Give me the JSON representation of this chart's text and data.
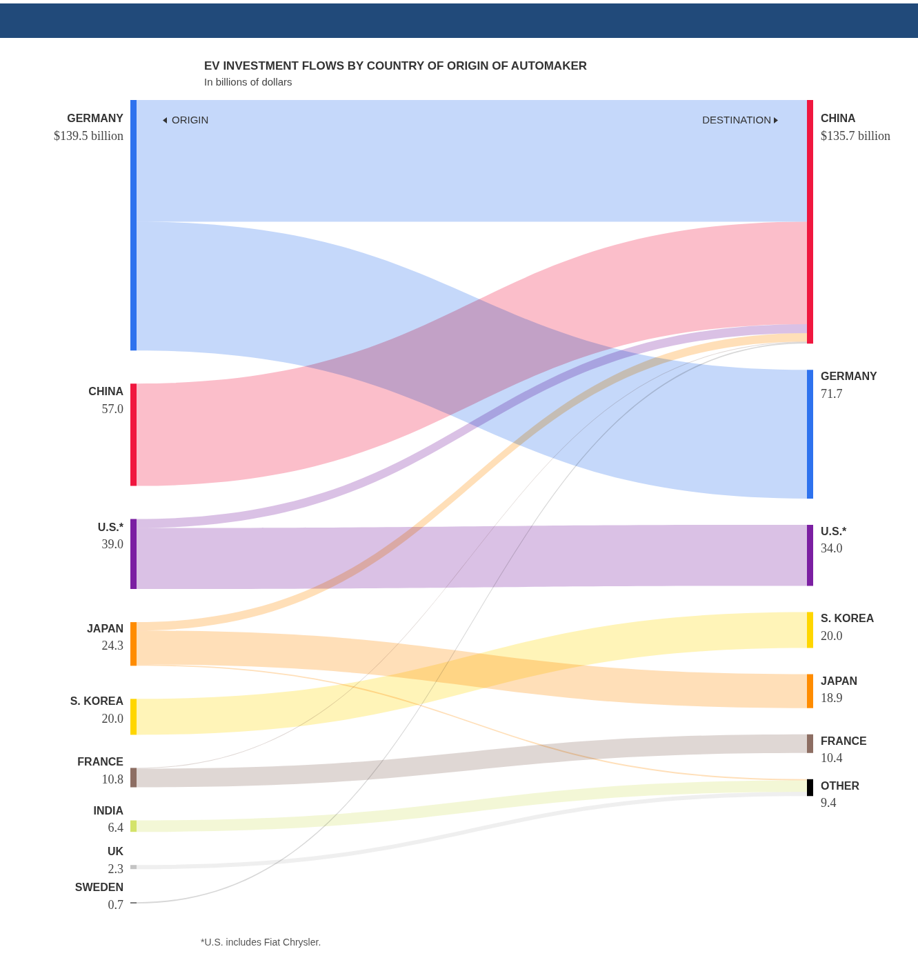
{
  "chart_data": {
    "type": "other",
    "title": "EV INVESTMENT FLOWS BY COUNTRY OF ORIGIN OF AUTOMAKER",
    "subtitle": "In billions of dollars",
    "categories": [
      "GERMANY",
      "CHINA",
      "U.S.*",
      "JAPAN",
      "S. KOREA",
      "FRANCE",
      "INDIA",
      "UK",
      "SWEDEN",
      "CHINA",
      "GERMANY",
      "U.S.*",
      "S. KOREA",
      "JAPAN",
      "FRANCE",
      "OTHER"
    ],
    "series": [
      {
        "name": "ORIGIN",
        "values": [
          139.5,
          57.0,
          39.0,
          24.3,
          20.0,
          10.8,
          6.4,
          2.3,
          0.7,
          null,
          null,
          null,
          null,
          null,
          null,
          null
        ],
        "value_labels": [
          "$139.5 billion",
          "57.0",
          "39.0",
          "24.3",
          "20.0",
          "10.8",
          "6.4",
          "2.3",
          "0.7",
          null,
          null,
          null,
          null,
          null,
          null,
          null
        ],
        "colors": [
          "#2e72ee",
          "#f0173f",
          "#7b1fa2",
          "#ff8c00",
          "#ffd600",
          "#8d6e63",
          "#d4e36a",
          "#c4c4c4",
          "#707070",
          null,
          null,
          null,
          null,
          null,
          null,
          null
        ]
      },
      {
        "name": "DESTINATION",
        "values": [
          null,
          null,
          null,
          null,
          null,
          null,
          null,
          null,
          null,
          135.7,
          71.7,
          34.0,
          20.0,
          18.9,
          10.4,
          9.4
        ],
        "value_labels": [
          null,
          null,
          null,
          null,
          null,
          null,
          null,
          null,
          null,
          "$135.7 billion",
          "71.7",
          "34.0",
          "20.0",
          "18.9",
          "10.4",
          "9.4"
        ],
        "colors": [
          null,
          null,
          null,
          null,
          null,
          null,
          null,
          null,
          null,
          "#f0173f",
          "#2e72ee",
          "#7b1fa2",
          "#ffd600",
          "#ff8c00",
          "#8d6e63",
          "#000000"
        ]
      }
    ],
    "cells": [
      [
        null,
        null,
        null,
        null,
        null,
        null,
        null,
        null,
        null,
        true,
        true,
        null,
        null,
        null,
        null,
        null
      ],
      [
        null,
        null,
        null,
        null,
        null,
        null,
        null,
        null,
        null,
        true,
        null,
        null,
        null,
        null,
        null,
        null
      ],
      [
        null,
        null,
        null,
        null,
        null,
        null,
        null,
        null,
        null,
        true,
        null,
        true,
        null,
        null,
        null,
        null
      ],
      [
        null,
        null,
        null,
        null,
        null,
        null,
        null,
        null,
        null,
        true,
        null,
        null,
        null,
        true,
        null,
        true
      ],
      [
        null,
        null,
        null,
        null,
        null,
        null,
        null,
        null,
        null,
        null,
        null,
        null,
        true,
        null,
        null,
        null
      ],
      [
        null,
        null,
        null,
        null,
        null,
        null,
        null,
        null,
        null,
        true,
        null,
        null,
        null,
        null,
        true,
        null
      ],
      [
        null,
        null,
        null,
        null,
        null,
        null,
        null,
        null,
        null,
        null,
        null,
        null,
        null,
        null,
        null,
        true
      ],
      [
        null,
        null,
        null,
        null,
        null,
        null,
        null,
        null,
        null,
        null,
        null,
        null,
        null,
        null,
        null,
        true
      ],
      [
        null,
        null,
        null,
        null,
        null,
        null,
        null,
        null,
        null,
        true,
        null,
        null,
        null,
        null,
        null,
        null
      ],
      [
        null,
        null,
        null,
        null,
        null,
        null,
        null,
        null,
        null,
        null,
        null,
        null,
        null,
        null,
        null,
        null
      ],
      [
        null,
        null,
        null,
        null,
        null,
        null,
        null,
        null,
        null,
        null,
        null,
        null,
        null,
        null,
        null,
        null
      ],
      [
        null,
        null,
        null,
        null,
        null,
        null,
        null,
        null,
        null,
        null,
        null,
        null,
        null,
        null,
        null,
        null
      ],
      [
        null,
        null,
        null,
        null,
        null,
        null,
        null,
        null,
        null,
        null,
        null,
        null,
        null,
        null,
        null,
        null
      ],
      [
        null,
        null,
        null,
        null,
        null,
        null,
        null,
        null,
        null,
        null,
        null,
        null,
        null,
        null,
        null,
        null
      ],
      [
        null,
        null,
        null,
        null,
        null,
        null,
        null,
        null,
        null,
        null,
        null,
        null,
        null,
        null,
        null,
        null
      ],
      [
        null,
        null,
        null,
        null,
        null,
        null,
        null,
        null,
        null,
        null,
        null,
        null,
        null,
        null,
        null,
        null
      ]
    ],
    "annotations": [
      "*U.S. includes Fiat Chrysler."
    ]
  }
}
